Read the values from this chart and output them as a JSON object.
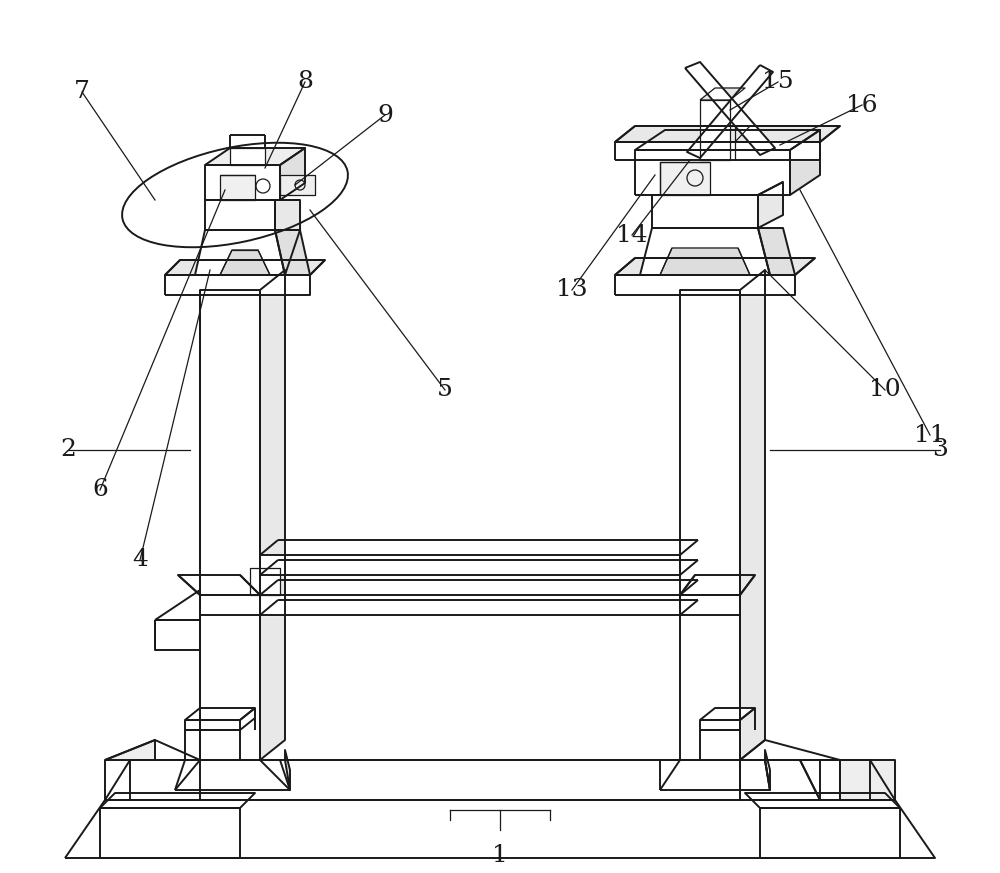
{
  "bg_color": "#ffffff",
  "line_color": "#1a1a1a",
  "lw": 1.4,
  "tlw": 0.9,
  "fig_w": 10.0,
  "fig_h": 8.73,
  "label_fs": 18,
  "label_color": "#1a1a1a"
}
